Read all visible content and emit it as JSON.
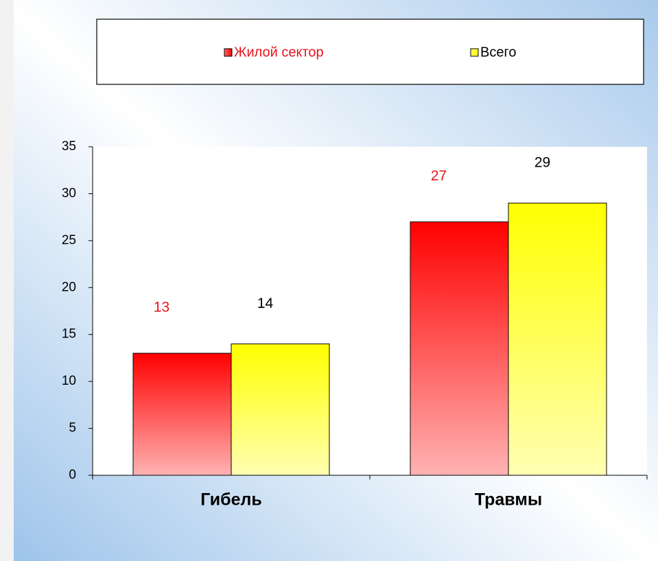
{
  "chart_data": {
    "type": "bar",
    "categories": [
      "Гибель",
      "Травмы"
    ],
    "series": [
      {
        "name": "Жилой сектор",
        "color": "#ff0000",
        "label_color": "#e8141c",
        "values": [
          13,
          27
        ]
      },
      {
        "name": "Всего",
        "color": "#ffff00",
        "label_color": "#000000",
        "values": [
          14,
          29
        ]
      }
    ],
    "ylim": [
      0,
      35
    ],
    "yticks": [
      0,
      5,
      10,
      15,
      20,
      25,
      30,
      35
    ],
    "grid": false,
    "legend": "top"
  }
}
